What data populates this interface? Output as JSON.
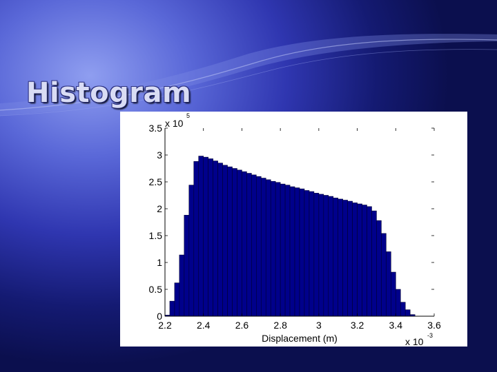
{
  "slide": {
    "title": "Histogram"
  },
  "colors": {
    "bar_fill": "#00008b",
    "bar_edge": "#000033"
  },
  "chart_data": {
    "type": "bar",
    "title": "",
    "xlabel": "Displacement (m)",
    "ylabel": "",
    "xlim": [
      2.2,
      3.6
    ],
    "ylim": [
      0,
      3.5
    ],
    "x_multiplier": "x 10",
    "x_multiplier_exponent": "-3",
    "y_multiplier": "x 10",
    "y_multiplier_exponent": "5",
    "x_ticks": [
      "2.2",
      "2.4",
      "2.6",
      "2.8",
      "3",
      "3.2",
      "3.4",
      "3.6"
    ],
    "y_ticks": [
      "0",
      "0.5",
      "1",
      "1.5",
      "2",
      "2.5",
      "3",
      "3.5"
    ],
    "bin_left_edges": [
      2.2,
      2.225,
      2.25,
      2.275,
      2.3,
      2.325,
      2.35,
      2.375,
      2.4,
      2.425,
      2.45,
      2.475,
      2.5,
      2.525,
      2.55,
      2.575,
      2.6,
      2.625,
      2.65,
      2.675,
      2.7,
      2.725,
      2.75,
      2.775,
      2.8,
      2.825,
      2.85,
      2.875,
      2.9,
      2.925,
      2.95,
      2.975,
      3.0,
      3.025,
      3.05,
      3.075,
      3.1,
      3.125,
      3.15,
      3.175,
      3.2,
      3.225,
      3.25,
      3.275,
      3.3,
      3.325,
      3.35,
      3.375,
      3.4,
      3.425,
      3.45,
      3.475,
      3.5,
      3.525
    ],
    "bin_width": 0.025,
    "values": [
      0.02,
      0.28,
      0.62,
      1.14,
      1.88,
      2.44,
      2.88,
      2.98,
      2.96,
      2.93,
      2.89,
      2.85,
      2.81,
      2.78,
      2.75,
      2.72,
      2.69,
      2.66,
      2.63,
      2.6,
      2.57,
      2.54,
      2.51,
      2.49,
      2.46,
      2.44,
      2.41,
      2.39,
      2.37,
      2.34,
      2.32,
      2.29,
      2.27,
      2.25,
      2.23,
      2.2,
      2.18,
      2.16,
      2.14,
      2.11,
      2.09,
      2.07,
      2.04,
      1.96,
      1.78,
      1.54,
      1.2,
      0.82,
      0.5,
      0.26,
      0.12,
      0.03,
      0.0,
      0.0
    ]
  }
}
